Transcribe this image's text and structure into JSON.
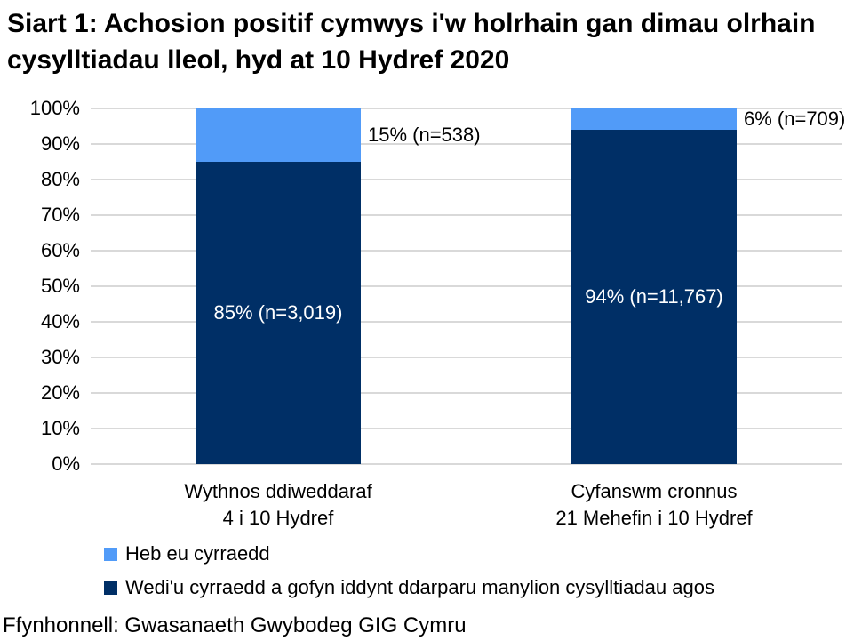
{
  "title": "Siart 1: Achosion positif cymwys i'w holrhain gan dimau olrhain cysylltiadau lleol, hyd at 10 Hydref 2020",
  "source": "Ffynhonnell: Gwasanaeth Gwybodeg GIG Cymru",
  "colors": {
    "light_blue": "#519BF8",
    "navy": "#002F66",
    "gridline": "#D9D9D9",
    "text": "#000000",
    "background": "#FFFFFF"
  },
  "chart_data": {
    "type": "bar",
    "stacked": true,
    "grid": true,
    "legend_position": "bottom-left",
    "ylim": [
      0,
      100
    ],
    "yticks": [
      "0%",
      "10%",
      "20%",
      "30%",
      "40%",
      "50%",
      "60%",
      "70%",
      "80%",
      "90%",
      "100%"
    ],
    "categories": [
      [
        "Wythnos ddiweddaraf",
        "4 i 10 Hydref"
      ],
      [
        "Cyfanswm cronnus",
        "21 Mehefin i 10 Hydref"
      ]
    ],
    "series": [
      {
        "name": "Wedi'u cyrraedd a gofyn iddynt ddarparu manylion cysylltiadau agos",
        "values": [
          85,
          94
        ],
        "counts": [
          3019,
          11767
        ],
        "labels": [
          "85% (n=3,019)",
          "94% (n=11,767)"
        ],
        "color_key": "navy",
        "label_placement": "inside"
      },
      {
        "name": "Heb eu cyrraedd",
        "values": [
          15,
          6
        ],
        "counts": [
          538,
          709
        ],
        "labels": [
          "15% (n=538)",
          "6% (n=709)"
        ],
        "color_key": "light_blue",
        "label_placement": "outside-right"
      }
    ]
  }
}
